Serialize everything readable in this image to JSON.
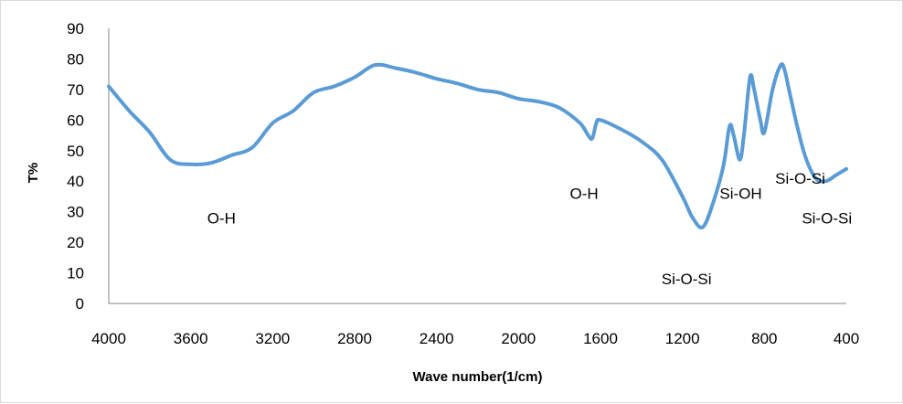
{
  "chart_data": {
    "type": "line",
    "title": "",
    "xlabel": "Wave number(1/cm)",
    "ylabel": "T%",
    "xlim": [
      4000,
      400
    ],
    "ylim": [
      0,
      90
    ],
    "x_reversed": true,
    "x_ticks": [
      4000,
      3600,
      3200,
      2800,
      2400,
      2000,
      1600,
      1200,
      800,
      400
    ],
    "y_ticks": [
      0,
      10,
      20,
      30,
      40,
      50,
      60,
      70,
      80,
      90
    ],
    "grid": false,
    "legend": "none",
    "line_color": "#5b9bd5",
    "series": [
      {
        "name": "",
        "x": [
          4000,
          3900,
          3800,
          3700,
          3600,
          3500,
          3400,
          3300,
          3200,
          3100,
          3000,
          2900,
          2800,
          2700,
          2600,
          2500,
          2400,
          2300,
          2200,
          2100,
          2000,
          1900,
          1800,
          1700,
          1660,
          1640,
          1620,
          1600,
          1500,
          1400,
          1300,
          1200,
          1150,
          1100,
          1050,
          1000,
          970,
          950,
          920,
          900,
          870,
          850,
          820,
          800,
          760,
          720,
          700,
          680,
          640,
          600,
          550,
          500,
          450,
          400
        ],
        "y": [
          71,
          63,
          56,
          47,
          45.5,
          46,
          48.5,
          51,
          59,
          63,
          69,
          71,
          74,
          78,
          77,
          75.5,
          73.5,
          72,
          70,
          69,
          67,
          66,
          64,
          59,
          55,
          54,
          59,
          60,
          57,
          53,
          47,
          35,
          28,
          25,
          33,
          45,
          58,
          55,
          47,
          55,
          74,
          70,
          60,
          56,
          70,
          78,
          76,
          70,
          58,
          48,
          41,
          40,
          42,
          44
        ]
      }
    ],
    "annotations": [
      {
        "text": "O-H",
        "x": 3450,
        "y": 28
      },
      {
        "text": "O-H",
        "x": 1680,
        "y": 36
      },
      {
        "text": "Si-O-Si",
        "x": 1180,
        "y": 8
      },
      {
        "text": "Si-OH",
        "x": 915,
        "y": 36
      },
      {
        "text": "Si-O-Si",
        "x": 625,
        "y": 41
      },
      {
        "text": "Si-O-Si",
        "x": 495,
        "y": 28
      }
    ]
  }
}
